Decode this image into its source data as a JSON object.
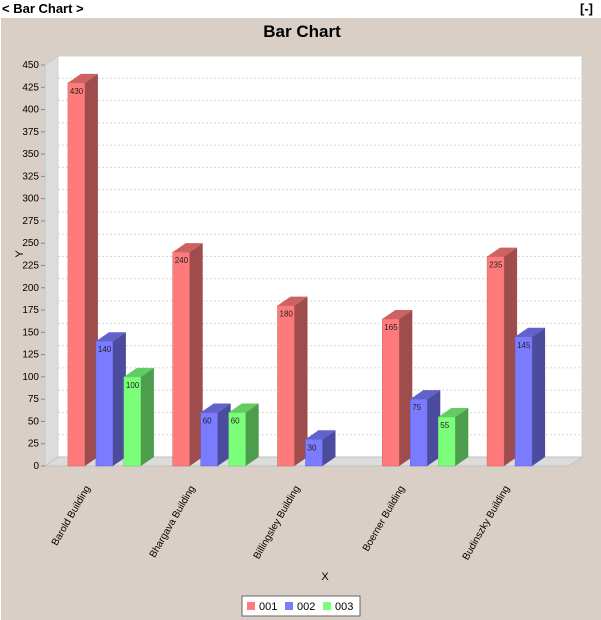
{
  "window": {
    "title": "< Bar Chart >",
    "minimize_label": "[-]"
  },
  "colors": {
    "panel_bg": "#d9cfc6"
  },
  "chart_data": {
    "type": "bar",
    "style": "3d",
    "title": "Bar Chart",
    "xlabel": "X",
    "ylabel": "Y",
    "ylim": [
      0,
      450
    ],
    "ytick_step": 25,
    "grid": true,
    "legend_position": "bottom",
    "categories": [
      "Barold Building",
      "Bhargava Building",
      "Billingsley Building",
      "Boerner Building",
      "Budinszky Building"
    ],
    "series": [
      {
        "name": "001",
        "color": "#ff7b7b",
        "values": [
          430,
          240,
          180,
          165,
          235
        ]
      },
      {
        "name": "002",
        "color": "#7b7bff",
        "values": [
          140,
          60,
          30,
          75,
          145
        ]
      },
      {
        "name": "003",
        "color": "#7bff7b",
        "values": [
          100,
          60,
          null,
          55,
          null
        ]
      }
    ]
  }
}
